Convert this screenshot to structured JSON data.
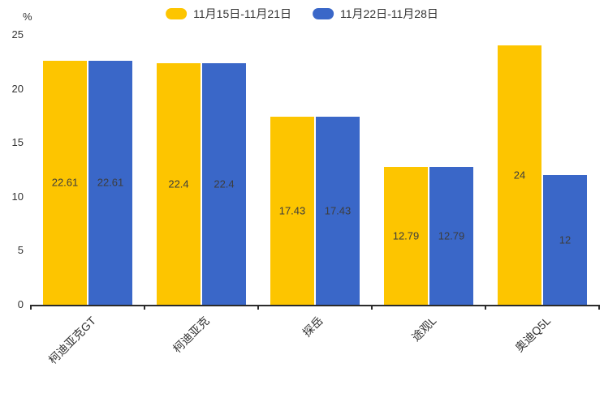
{
  "chart_data": {
    "type": "bar",
    "title": "",
    "categories": [
      "柯迪亚克GT",
      "柯迪亚克",
      "探岳",
      "途观L",
      "奥迪Q5L"
    ],
    "series": [
      {
        "name": "11月15日-11月21日",
        "color": "#FDC500",
        "values": [
          22.61,
          22.4,
          17.43,
          12.79,
          24
        ]
      },
      {
        "name": "11月22日-11月28日",
        "color": "#3A67C8",
        "values": [
          22.61,
          22.4,
          17.43,
          12.79,
          12
        ]
      }
    ],
    "xlabel": "",
    "ylabel": "%",
    "ylim": [
      0,
      25
    ],
    "yticks": [
      0,
      5,
      10,
      15,
      20,
      25
    ],
    "grid": false,
    "legend_position": "top-center",
    "value_labels": "inside-center",
    "axis_color": "#2b2b2b",
    "text_color": "#333333",
    "value_label_color": "#3d3d3d"
  }
}
